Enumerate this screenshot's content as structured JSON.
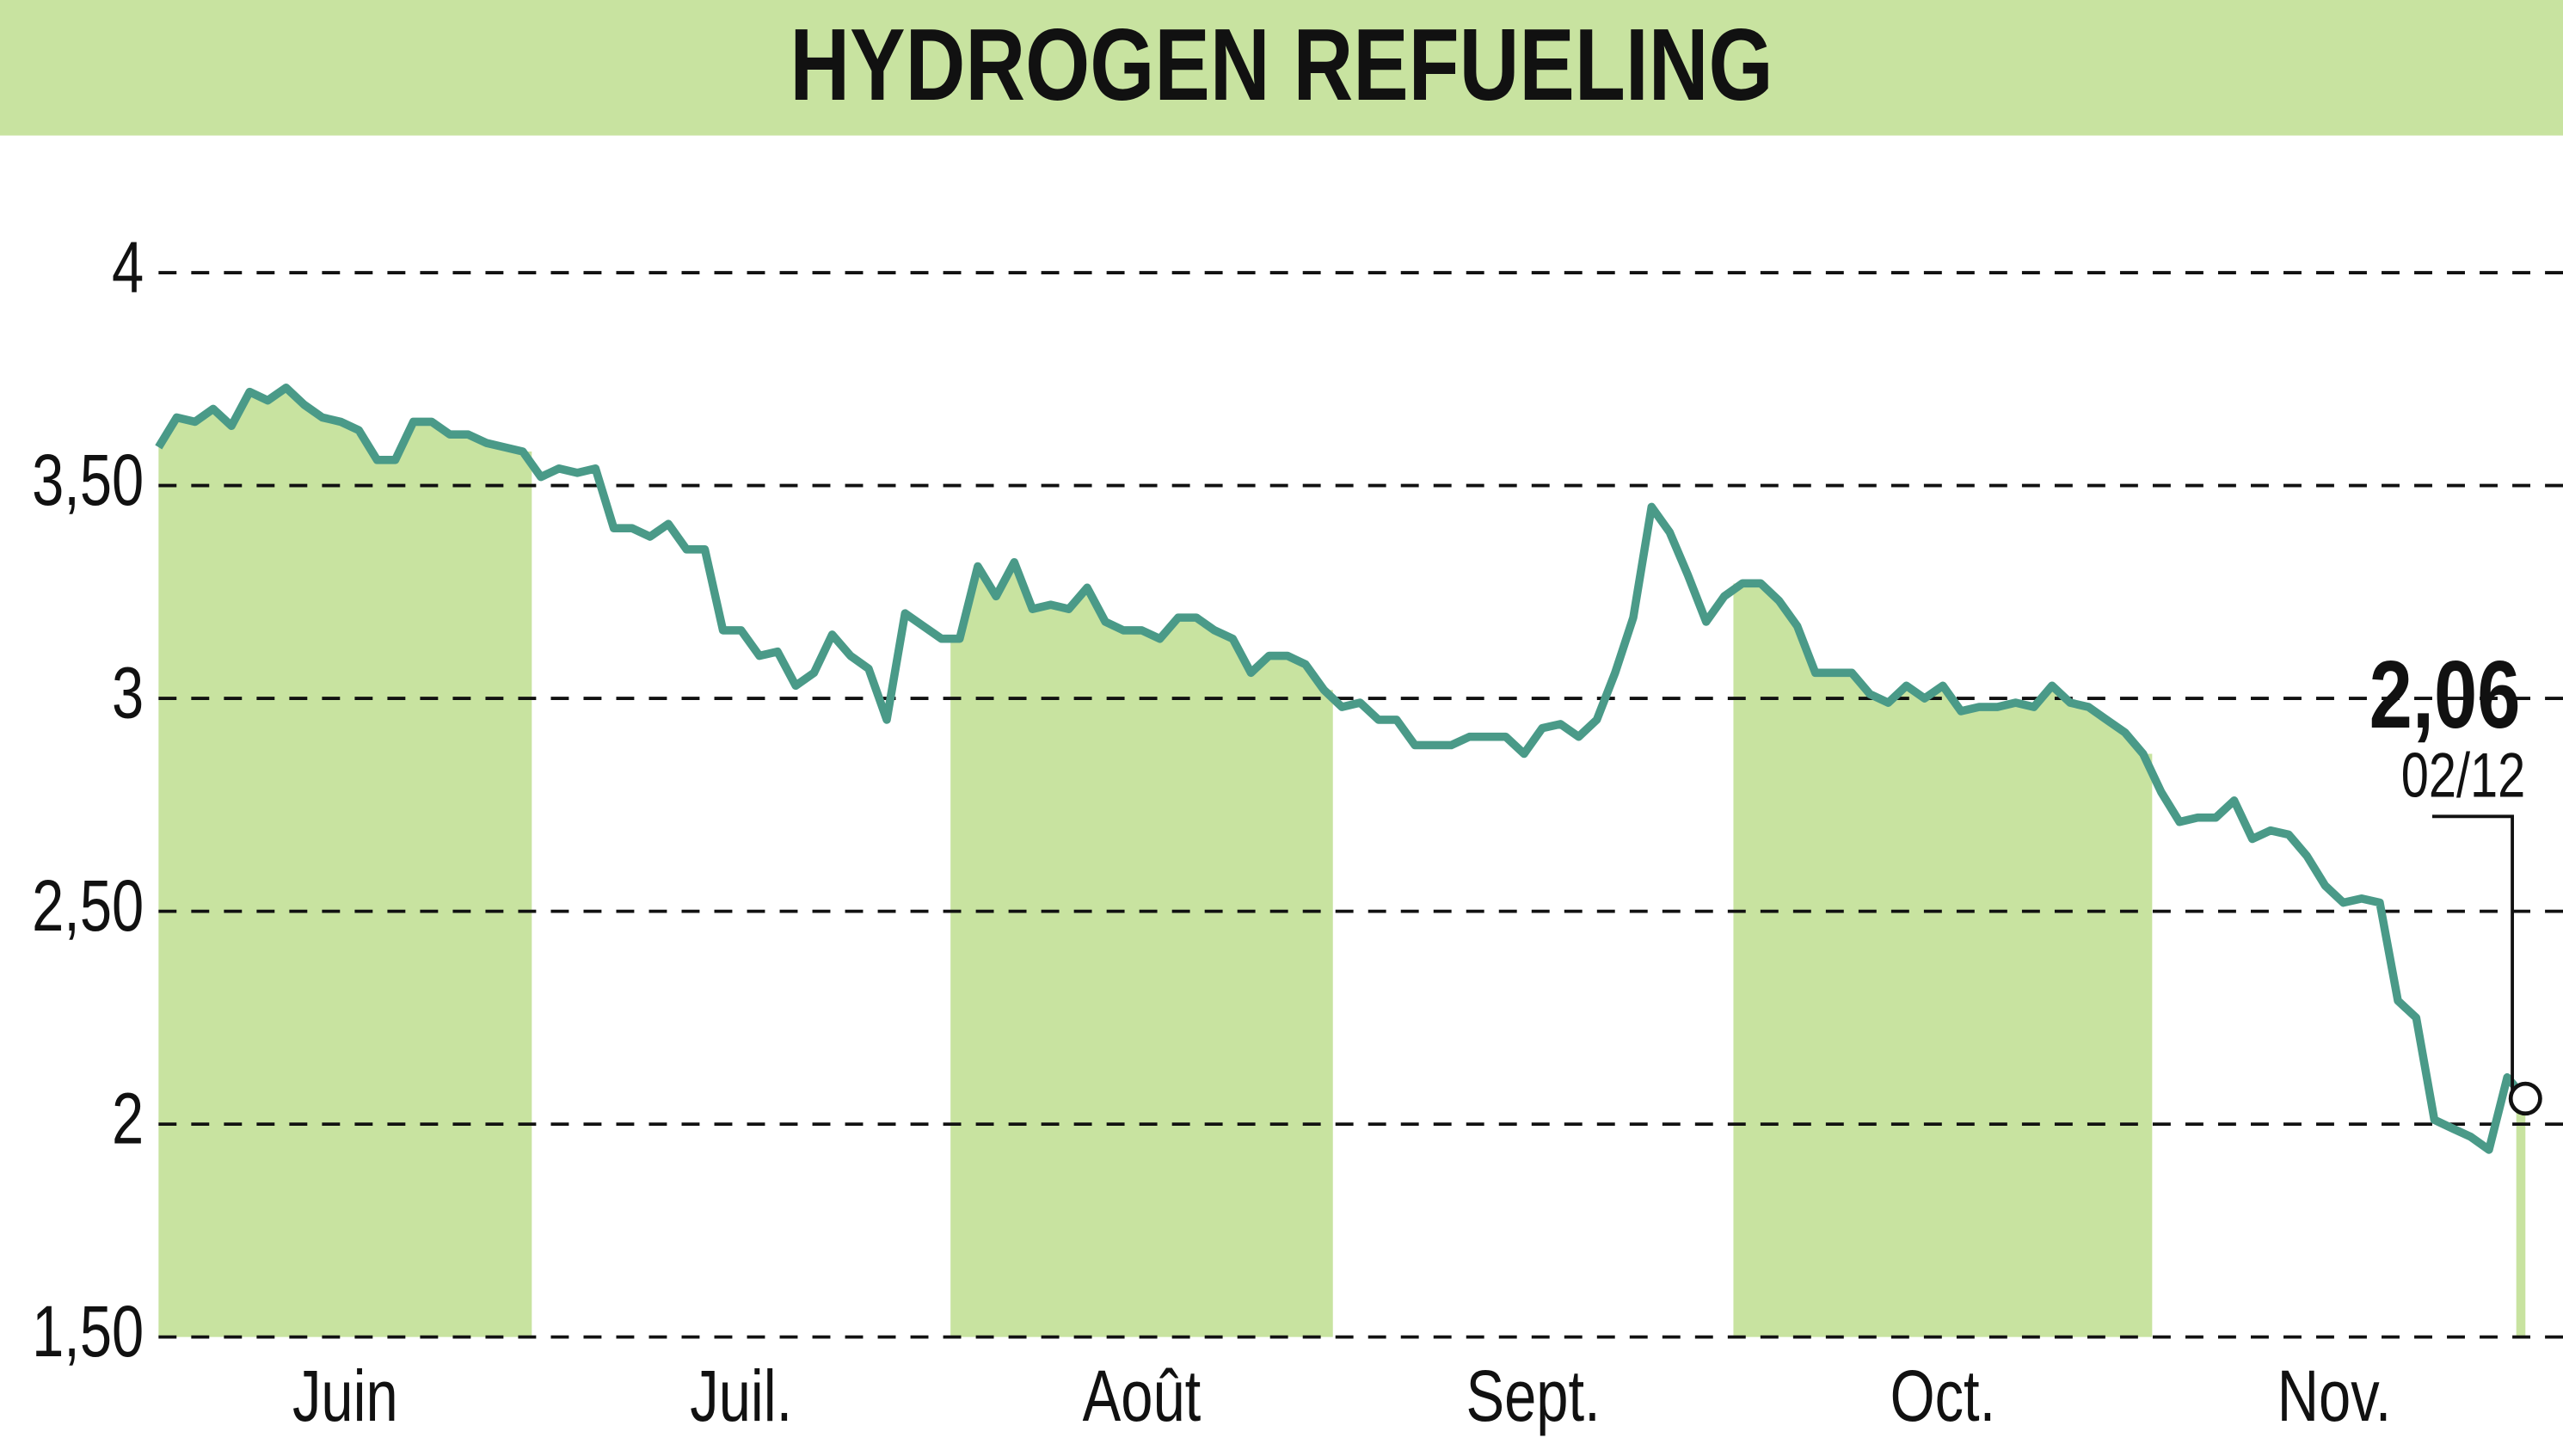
{
  "chart_data": {
    "type": "line",
    "title": "HYDROGEN REFUELING",
    "categories": [
      "Juin",
      "Juil.",
      "Août",
      "Sept.",
      "Oct.",
      "Nov.",
      null
    ],
    "values": [
      [
        3.59,
        3.66,
        3.65,
        3.68,
        3.64,
        3.72,
        3.7,
        3.73,
        3.69,
        3.66,
        3.65,
        3.63,
        3.56,
        3.56,
        3.65,
        3.65,
        3.62,
        3.62,
        3.6,
        3.59,
        3.58
      ],
      [
        3.52,
        3.54,
        3.53,
        3.54,
        3.4,
        3.4,
        3.38,
        3.41,
        3.35,
        3.35,
        3.16,
        3.16,
        3.1,
        3.11,
        3.03,
        3.06,
        3.15,
        3.1,
        3.07,
        2.95,
        3.2,
        3.17,
        3.14
      ],
      [
        3.14,
        3.31,
        3.24,
        3.32,
        3.21,
        3.22,
        3.21,
        3.26,
        3.18,
        3.16,
        3.16,
        3.14,
        3.19,
        3.19,
        3.16,
        3.14,
        3.06,
        3.1,
        3.1,
        3.08,
        3.02
      ],
      [
        2.98,
        2.99,
        2.95,
        2.95,
        2.89,
        2.89,
        2.89,
        2.91,
        2.91,
        2.91,
        2.87,
        2.93,
        2.94,
        2.91,
        2.95,
        3.06,
        3.19,
        3.45,
        3.39,
        3.29,
        3.18,
        3.24
      ],
      [
        3.27,
        3.27,
        3.23,
        3.17,
        3.06,
        3.06,
        3.06,
        3.01,
        2.99,
        3.03,
        3.0,
        3.03,
        2.97,
        2.98,
        2.98,
        2.99,
        2.98,
        3.03,
        2.99,
        2.98,
        2.95,
        2.92,
        2.87
      ],
      [
        2.78,
        2.71,
        2.72,
        2.72,
        2.76,
        2.67,
        2.69,
        2.68,
        2.63,
        2.56,
        2.52,
        2.53,
        2.52,
        2.29,
        2.25,
        2.01,
        1.99,
        1.97,
        1.94,
        2.11
      ],
      [
        2.06
      ]
    ],
    "color": "#4a9a88",
    "fill_color": "#c8e3a0",
    "ylim": [
      1.5,
      4.25
    ],
    "yticks": [
      {
        "value": 1.5,
        "label": "1,50"
      },
      2,
      {
        "value": 2.5,
        "label": "2,50"
      },
      3,
      {
        "value": 3.5,
        "label": "3,50"
      },
      4
    ],
    "grid": true,
    "annotation": {
      "label": "2,06",
      "date": "02/12"
    }
  }
}
